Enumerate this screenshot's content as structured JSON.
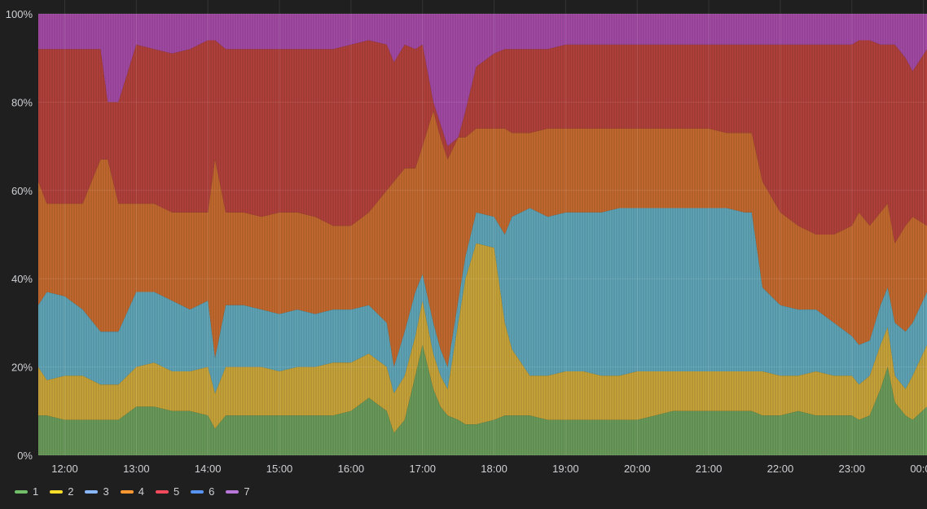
{
  "chart_data": {
    "type": "area",
    "stacking": "percent",
    "x_ticks": [
      "12:00",
      "13:00",
      "14:00",
      "15:00",
      "16:00",
      "17:00",
      "18:00",
      "19:00",
      "20:00",
      "21:00",
      "22:00",
      "23:00",
      "00:00"
    ],
    "x_tick_hours": [
      12,
      13,
      14,
      15,
      16,
      17,
      18,
      19,
      20,
      21,
      22,
      23,
      24
    ],
    "x_range_hours": [
      11.63,
      24.05
    ],
    "y_ticks": [
      "0%",
      "20%",
      "40%",
      "60%",
      "80%",
      "100%"
    ],
    "ylim": [
      0,
      100
    ],
    "grid": true,
    "legend_position": "bottom-left",
    "series_colors": {
      "1": "#73bf69",
      "2": "#fade2a",
      "3": "#8ab8ff",
      "4": "#ff9830",
      "5": "#f2495c",
      "6": "#5794f2",
      "7": "#b877d9"
    },
    "x_hours": [
      11.63,
      11.75,
      12.0,
      12.25,
      12.5,
      12.6,
      12.75,
      13.0,
      13.25,
      13.5,
      13.75,
      14.0,
      14.1,
      14.25,
      14.5,
      14.75,
      15.0,
      15.25,
      15.5,
      15.75,
      16.0,
      16.25,
      16.5,
      16.6,
      16.75,
      16.9,
      17.0,
      17.15,
      17.25,
      17.35,
      17.5,
      17.6,
      17.75,
      18.0,
      18.15,
      18.25,
      18.5,
      18.75,
      19.0,
      19.25,
      19.5,
      19.75,
      20.0,
      20.25,
      20.5,
      20.75,
      21.0,
      21.25,
      21.5,
      21.6,
      21.75,
      22.0,
      22.25,
      22.5,
      22.75,
      23.0,
      23.1,
      23.25,
      23.4,
      23.5,
      23.6,
      23.75,
      23.85,
      24.05
    ],
    "cumulative_top": {
      "1": [
        9,
        9,
        8,
        8,
        8,
        8,
        8,
        11,
        11,
        10,
        10,
        9,
        6,
        9,
        9,
        9,
        9,
        9,
        9,
        9,
        10,
        13,
        10,
        5,
        8,
        18,
        25,
        15,
        11,
        9,
        8,
        7,
        7,
        8,
        9,
        9,
        9,
        8,
        8,
        8,
        8,
        8,
        8,
        9,
        10,
        10,
        10,
        10,
        10,
        10,
        9,
        9,
        10,
        9,
        9,
        9,
        8,
        9,
        15,
        20,
        12,
        9,
        8,
        11
      ],
      "2": [
        20,
        17,
        18,
        18,
        16,
        16,
        16,
        20,
        21,
        19,
        19,
        20,
        14,
        20,
        20,
        20,
        19,
        20,
        20,
        21,
        21,
        23,
        20,
        14,
        18,
        27,
        35,
        23,
        18,
        15,
        30,
        40,
        48,
        47,
        30,
        24,
        18,
        18,
        19,
        19,
        18,
        18,
        19,
        19,
        19,
        19,
        19,
        19,
        19,
        19,
        19,
        18,
        18,
        19,
        18,
        18,
        16,
        18,
        25,
        29,
        18,
        15,
        18,
        25
      ],
      "3": [
        34,
        37,
        36,
        33,
        28,
        28,
        28,
        37,
        37,
        35,
        33,
        35,
        22,
        34,
        34,
        33,
        32,
        33,
        32,
        33,
        33,
        34,
        30,
        20,
        28,
        37,
        41,
        30,
        24,
        20,
        35,
        45,
        55,
        54,
        50,
        54,
        56,
        54,
        55,
        55,
        55,
        56,
        56,
        56,
        56,
        56,
        56,
        56,
        55,
        55,
        38,
        34,
        33,
        33,
        30,
        27,
        25,
        26,
        34,
        38,
        30,
        28,
        30,
        37
      ],
      "4": [
        62,
        57,
        57,
        57,
        67,
        67,
        57,
        57,
        57,
        55,
        55,
        55,
        67,
        55,
        55,
        54,
        55,
        55,
        54,
        52,
        52,
        55,
        60,
        62,
        65,
        65,
        70,
        78,
        72,
        67,
        72,
        72,
        74,
        74,
        74,
        73,
        73,
        74,
        74,
        74,
        74,
        74,
        74,
        74,
        74,
        74,
        74,
        73,
        73,
        73,
        62,
        55,
        52,
        50,
        50,
        52,
        55,
        52,
        55,
        57,
        48,
        52,
        54,
        52
      ],
      "5": [
        92,
        92,
        92,
        92,
        92,
        80,
        80,
        93,
        92,
        91,
        92,
        94,
        94,
        92,
        92,
        92,
        92,
        92,
        92,
        92,
        93,
        94,
        93,
        89,
        93,
        92,
        93,
        80,
        75,
        70,
        72,
        78,
        88,
        91,
        92,
        92,
        92,
        92,
        93,
        93,
        93,
        93,
        93,
        93,
        93,
        93,
        93,
        93,
        93,
        93,
        93,
        93,
        93,
        93,
        93,
        93,
        94,
        94,
        93,
        93,
        93,
        90,
        87,
        92
      ],
      "6": [
        92,
        92,
        92,
        92,
        92,
        80,
        80,
        93,
        92,
        91,
        92,
        94,
        94,
        92,
        92,
        92,
        92,
        92,
        92,
        92,
        93,
        94,
        93,
        89,
        93,
        92,
        93,
        80,
        75,
        70,
        72,
        78,
        88,
        91,
        92,
        92,
        92,
        92,
        93,
        93,
        93,
        93,
        93,
        93,
        93,
        93,
        93,
        93,
        93,
        93,
        93,
        93,
        93,
        93,
        93,
        93,
        94,
        94,
        93,
        93,
        93,
        90,
        87,
        92
      ],
      "7": [
        100,
        100,
        100,
        100,
        100,
        100,
        100,
        100,
        100,
        100,
        100,
        100,
        100,
        100,
        100,
        100,
        100,
        100,
        100,
        100,
        100,
        100,
        100,
        100,
        100,
        100,
        100,
        100,
        100,
        100,
        100,
        100,
        100,
        100,
        100,
        100,
        100,
        100,
        100,
        100,
        100,
        100,
        100,
        100,
        100,
        100,
        100,
        100,
        100,
        100,
        100,
        100,
        100,
        100,
        100,
        100,
        100,
        100,
        100,
        100,
        100,
        100,
        100,
        100
      ]
    },
    "series": [
      {
        "name": "1",
        "color": "#73bf69",
        "fill": "#6a9b5a"
      },
      {
        "name": "2",
        "color": "#fade2a",
        "fill": "#c9a43a"
      },
      {
        "name": "3",
        "color": "#8ab8ff",
        "fill": "#5fa5b7"
      },
      {
        "name": "4",
        "color": "#ff9830",
        "fill": "#c4692f"
      },
      {
        "name": "5",
        "color": "#f2495c",
        "fill": "#b2403b"
      },
      {
        "name": "6",
        "color": "#5794f2",
        "fill": "#3f6fb8"
      },
      {
        "name": "7",
        "color": "#b877d9",
        "fill": "#a34aa5"
      }
    ]
  }
}
